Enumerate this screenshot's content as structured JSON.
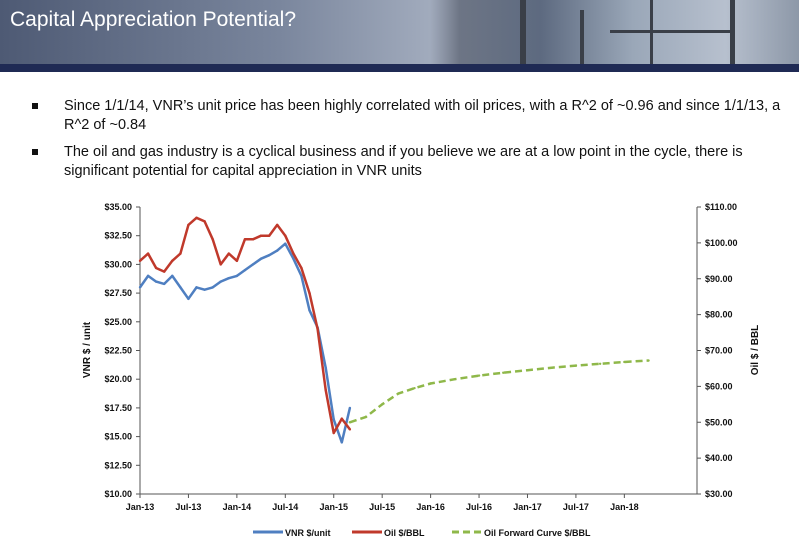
{
  "slide": {
    "title": "Capital Appreciation Potential?",
    "bullets": [
      "Since 1/1/14, VNR’s unit price has been highly correlated with oil prices, with a R^2 of ~0.96 and since 1/1/13, a R^2 of ~0.84",
      "The oil and gas industry is a cyclical business and if you believe we are at a low point in the cycle, there is significant potential for capital appreciation in VNR units"
    ]
  },
  "colors": {
    "vnr": "#4f7fc1",
    "oil": "#c0392b",
    "forward": "#8fb84a",
    "header_band": "#1f2a54"
  },
  "chart_data": {
    "type": "line",
    "ylabel": "VNR $ / unit",
    "y2label": "Oil $ / BBL",
    "ylim": [
      10,
      35
    ],
    "y2lim": [
      30,
      110
    ],
    "x_ticks": [
      "Jan-13",
      "Jul-13",
      "Jan-14",
      "Jul-14",
      "Jan-15",
      "Jul-15",
      "Jan-16",
      "Jul-16",
      "Jan-17",
      "Jul-17",
      "Jan-18"
    ],
    "y_ticks": [
      "$10.00",
      "$12.50",
      "$15.00",
      "$17.50",
      "$20.00",
      "$22.50",
      "$25.00",
      "$27.50",
      "$30.00",
      "$32.50",
      "$35.00"
    ],
    "y2_ticks": [
      "$30.00",
      "$40.00",
      "$50.00",
      "$60.00",
      "$70.00",
      "$80.00",
      "$90.00",
      "$100.00",
      "$110.00"
    ],
    "legend": [
      "VNR $/unit",
      "Oil $/BBL",
      "Oil Forward Curve $/BBL"
    ],
    "legend_position": "bottom",
    "series": [
      {
        "name": "VNR $/unit",
        "axis": "left",
        "x": [
          "2013-01",
          "2013-02",
          "2013-03",
          "2013-04",
          "2013-05",
          "2013-06",
          "2013-07",
          "2013-08",
          "2013-09",
          "2013-10",
          "2013-11",
          "2013-12",
          "2014-01",
          "2014-02",
          "2014-03",
          "2014-04",
          "2014-05",
          "2014-06",
          "2014-07",
          "2014-08",
          "2014-09",
          "2014-10",
          "2014-11",
          "2014-12",
          "2015-01",
          "2015-02",
          "2015-03"
        ],
        "values": [
          28.0,
          29.0,
          28.5,
          28.3,
          29.0,
          28.0,
          27.0,
          28.0,
          27.8,
          28.0,
          28.5,
          28.8,
          29.0,
          29.5,
          30.0,
          30.5,
          30.8,
          31.2,
          31.8,
          30.5,
          29.0,
          26.0,
          24.5,
          21.0,
          16.5,
          14.5,
          17.5
        ]
      },
      {
        "name": "Oil $/BBL",
        "axis": "right",
        "x": [
          "2013-01",
          "2013-02",
          "2013-03",
          "2013-04",
          "2013-05",
          "2013-06",
          "2013-07",
          "2013-08",
          "2013-09",
          "2013-10",
          "2013-11",
          "2013-12",
          "2014-01",
          "2014-02",
          "2014-03",
          "2014-04",
          "2014-05",
          "2014-06",
          "2014-07",
          "2014-08",
          "2014-09",
          "2014-10",
          "2014-11",
          "2014-12",
          "2015-01",
          "2015-02",
          "2015-03"
        ],
        "values": [
          95,
          97,
          93,
          92,
          95,
          97,
          105,
          107,
          106,
          101,
          94,
          97,
          95,
          101,
          101,
          102,
          102,
          105,
          102,
          97,
          93,
          86,
          76,
          59,
          47,
          51,
          48
        ]
      },
      {
        "name": "Oil Forward Curve $/BBL",
        "axis": "right",
        "x": [
          "2015-03",
          "2015-05",
          "2015-07",
          "2015-09",
          "2015-11",
          "2016-01",
          "2016-04",
          "2016-07",
          "2016-10",
          "2017-01",
          "2017-04",
          "2017-07",
          "2017-10",
          "2018-01",
          "2018-04"
        ],
        "values": [
          50.0,
          51.5,
          55.0,
          58.0,
          59.5,
          60.8,
          62.0,
          63.0,
          63.8,
          64.5,
          65.2,
          65.8,
          66.3,
          66.8,
          67.2
        ]
      }
    ]
  }
}
